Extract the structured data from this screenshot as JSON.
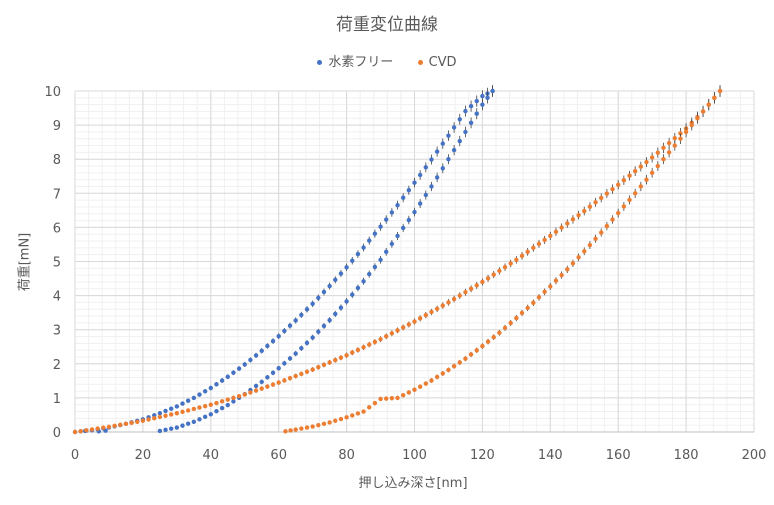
{
  "chart_data": {
    "type": "scatter",
    "title": "荷重変位曲線",
    "xlabel": "押し込み深さ[nm]",
    "ylabel": "荷重[mN]",
    "xlim": [
      0,
      200
    ],
    "ylim": [
      0,
      10
    ],
    "x_ticks": [
      "0",
      "20",
      "40",
      "60",
      "80",
      "100",
      "120",
      "140",
      "160",
      "180",
      "200"
    ],
    "y_ticks": [
      "0",
      "1",
      "2",
      "3",
      "4",
      "5",
      "6",
      "7",
      "8",
      "9",
      "10"
    ],
    "grid": true,
    "minor_grid": true,
    "error_bars": true,
    "legend_position": "top",
    "series": [
      {
        "name": "水素フリー",
        "color": "#4472C4",
        "loading": {
          "x": [
            0,
            5,
            10,
            15,
            20,
            25,
            30,
            35,
            40,
            45,
            50,
            55,
            60,
            65,
            70,
            75,
            80,
            85,
            90,
            95,
            100,
            105,
            110,
            115,
            120,
            123
          ],
          "y": [
            0,
            0.06,
            0.13,
            0.24,
            0.37,
            0.55,
            0.75,
            1.0,
            1.29,
            1.62,
            1.98,
            2.38,
            2.81,
            3.27,
            3.76,
            4.28,
            4.83,
            5.41,
            6.02,
            6.65,
            7.31,
            7.99,
            8.69,
            9.41,
            9.85,
            10.0
          ]
        },
        "unloading": {
          "x": [
            123,
            120,
            115,
            110,
            105,
            100,
            95,
            90,
            85,
            80,
            75,
            70,
            65,
            60,
            55,
            50,
            45,
            40,
            35,
            30,
            25
          ],
          "y": [
            10.0,
            9.6,
            8.8,
            8.0,
            7.2,
            6.45,
            5.75,
            5.05,
            4.42,
            3.83,
            3.28,
            2.77,
            2.3,
            1.87,
            1.47,
            1.11,
            0.79,
            0.52,
            0.3,
            0.13,
            0.03
          ]
        },
        "loading_tail": {
          "x": [
            3,
            5,
            7,
            9
          ],
          "y": [
            0.03,
            0.05,
            0.02,
            0.04
          ]
        }
      },
      {
        "name": "CVD",
        "color": "#ED7D31",
        "loading": {
          "x": [
            0,
            10,
            20,
            30,
            40,
            50,
            60,
            70,
            80,
            90,
            100,
            110,
            120,
            130,
            140,
            150,
            160,
            170,
            180,
            185,
            190
          ],
          "y": [
            0,
            0.15,
            0.33,
            0.55,
            0.8,
            1.1,
            1.45,
            1.83,
            2.25,
            2.72,
            3.24,
            3.8,
            4.4,
            5.05,
            5.75,
            6.48,
            7.25,
            8.05,
            8.9,
            9.4,
            10.0
          ]
        },
        "unloading": {
          "x": [
            190,
            185,
            180,
            175,
            170,
            165,
            160,
            155,
            150,
            145,
            140,
            135,
            130,
            125,
            120,
            115,
            110,
            105,
            100,
            95,
            90,
            85,
            80,
            75,
            70,
            65,
            62
          ],
          "y": [
            10.0,
            9.4,
            8.8,
            8.2,
            7.6,
            7.0,
            6.42,
            5.85,
            5.3,
            4.77,
            4.27,
            3.79,
            3.34,
            2.91,
            2.52,
            2.15,
            1.82,
            1.51,
            1.24,
            1.0,
            0.97,
            0.6,
            0.43,
            0.28,
            0.16,
            0.07,
            0.02
          ]
        }
      }
    ]
  }
}
